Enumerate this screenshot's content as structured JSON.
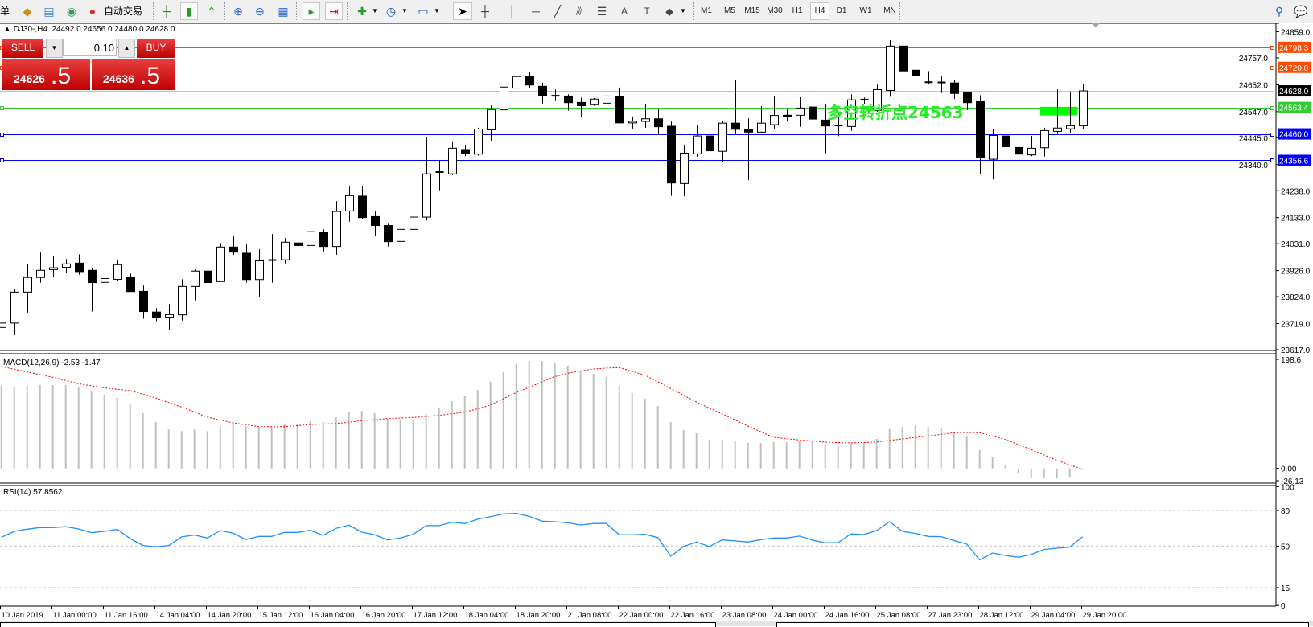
{
  "toolbar": {
    "menu_fragment": "单",
    "auto_trading_label": "自动交易",
    "icons": [
      "market-watch-icon",
      "navigator-icon",
      "terminal-icon",
      "signal-icon",
      "auto-trading-icon",
      "bar-chart-icon",
      "candlestick-icon",
      "line-chart-icon",
      "zoom-in-icon",
      "zoom-out-icon",
      "tile-windows-icon",
      "auto-scroll-icon",
      "chart-shift-icon",
      "indicators-icon",
      "periods-icon",
      "templates-icon",
      "cursor-icon",
      "crosshair-icon",
      "vertical-line-icon",
      "horizontal-line-icon",
      "trendline-icon",
      "fibonacci-icon",
      "fibo-fan-icon",
      "text-icon",
      "text-label-icon",
      "arrows-icon",
      "search-icon",
      "chat-icon"
    ],
    "timeframes": [
      "M1",
      "M5",
      "M15",
      "M30",
      "H1",
      "H4",
      "D1",
      "W1",
      "MN"
    ],
    "active_timeframe": "H4"
  },
  "chart": {
    "header": "DJ30-,H4  24492.0 24656.0 24480.0 24628.0",
    "symbol": "DJ30-,H4",
    "ohlc_text": "24492.0 24656.0 24480.0 24628.0"
  },
  "trade_panel": {
    "sell_label": "SELL",
    "buy_label": "BUY",
    "lot": "0.10",
    "sell_price_main": "24626",
    "sell_price_big": ".5",
    "buy_price_main": "24636",
    "buy_price_big": ".5"
  },
  "annotation": {
    "text": "多空转折点24563",
    "color": "#00ff00"
  },
  "chart_data": {
    "type": "candlestick",
    "price_axis": {
      "ylim": [
        23617.0,
        24859.0
      ],
      "ticks": [
        "24859.0",
        "24757.0",
        "24652.0",
        "24547.0",
        "24445.0",
        "24340.0",
        "24238.0",
        "24133.0",
        "24031.0",
        "23926.0",
        "23824.0",
        "23719.0",
        "23617.0"
      ]
    },
    "time_labels": [
      "10 Jan 2019",
      "11 Jan 00:00",
      "11 Jan 16:00",
      "14 Jan 04:00",
      "14 Jan 20:00",
      "15 Jan 12:00",
      "16 Jan 04:00",
      "16 Jan 20:00",
      "17 Jan 12:00",
      "18 Jan 04:00",
      "18 Jan 20:00",
      "21 Jan 08:00",
      "22 Jan 00:00",
      "22 Jan 16:00",
      "23 Jan 08:00",
      "24 Jan 00:00",
      "24 Jan 16:00",
      "25 Jan 08:00",
      "27 Jan 23:00",
      "28 Jan 12:00",
      "29 Jan 04:00",
      "29 Jan 20:00"
    ],
    "ohlc": [
      [
        23704,
        23752,
        23665,
        23721
      ],
      [
        23721,
        23853,
        23674,
        23842
      ],
      [
        23842,
        23952,
        23762,
        23899
      ],
      [
        23899,
        23996,
        23879,
        23927
      ],
      [
        23930,
        23982,
        23901,
        23937
      ],
      [
        23939,
        23971,
        23918,
        23952
      ],
      [
        23955,
        23989,
        23910,
        23922
      ],
      [
        23927,
        23937,
        23766,
        23879
      ],
      [
        23880,
        23950,
        23819,
        23895
      ],
      [
        23892,
        23969,
        23887,
        23949
      ],
      [
        23899,
        23914,
        23844,
        23844
      ],
      [
        23845,
        23868,
        23738,
        23766
      ],
      [
        23764,
        23779,
        23728,
        23743
      ],
      [
        23744,
        23795,
        23693,
        23754
      ],
      [
        23753,
        23892,
        23731,
        23864
      ],
      [
        23864,
        23930,
        23810,
        23924
      ],
      [
        23924,
        23931,
        23832,
        23879
      ],
      [
        23883,
        24034,
        23883,
        24018
      ],
      [
        24018,
        24060,
        23987,
        23998
      ],
      [
        23994,
        24031,
        23879,
        23891
      ],
      [
        23891,
        24010,
        23822,
        23964
      ],
      [
        23965,
        24069,
        23879,
        23967
      ],
      [
        23968,
        24053,
        23954,
        24037
      ],
      [
        24034,
        24050,
        23954,
        24024
      ],
      [
        24024,
        24093,
        23999,
        24078
      ],
      [
        24075,
        24087,
        24001,
        24020
      ],
      [
        24020,
        24197,
        23988,
        24157
      ],
      [
        24159,
        24254,
        24117,
        24219
      ],
      [
        24217,
        24257,
        24129,
        24133
      ],
      [
        24137,
        24159,
        24061,
        24102
      ],
      [
        24102,
        24109,
        24020,
        24039
      ],
      [
        24040,
        24107,
        24008,
        24087
      ],
      [
        24087,
        24166,
        24033,
        24135
      ],
      [
        24135,
        24446,
        24122,
        24304
      ],
      [
        24309,
        24358,
        24240,
        24311
      ],
      [
        24304,
        24428,
        24299,
        24404
      ],
      [
        24399,
        24418,
        24373,
        24384
      ],
      [
        24381,
        24484,
        24375,
        24479
      ],
      [
        24476,
        24571,
        24432,
        24555
      ],
      [
        24554,
        24724,
        24548,
        24643
      ],
      [
        24639,
        24703,
        24617,
        24684
      ],
      [
        24684,
        24700,
        24639,
        24651
      ],
      [
        24646,
        24660,
        24579,
        24610
      ],
      [
        24609,
        24634,
        24588,
        24609
      ],
      [
        24608,
        24615,
        24551,
        24582
      ],
      [
        24583,
        24602,
        24526,
        24570
      ],
      [
        24574,
        24600,
        24570,
        24596
      ],
      [
        24580,
        24619,
        24574,
        24608
      ],
      [
        24605,
        24641,
        24501,
        24503
      ],
      [
        24503,
        24528,
        24481,
        24509
      ],
      [
        24509,
        24575,
        24484,
        24519
      ],
      [
        24519,
        24558,
        24456,
        24488
      ],
      [
        24490,
        24508,
        24218,
        24268
      ],
      [
        24266,
        24418,
        24216,
        24385
      ],
      [
        24382,
        24494,
        24371,
        24452
      ],
      [
        24452,
        24455,
        24387,
        24394
      ],
      [
        24392,
        24512,
        24350,
        24502
      ],
      [
        24502,
        24669,
        24459,
        24478
      ],
      [
        24479,
        24521,
        24279,
        24467
      ],
      [
        24467,
        24568,
        24464,
        24502
      ],
      [
        24496,
        24606,
        24481,
        24532
      ],
      [
        24533,
        24556,
        24508,
        24527
      ],
      [
        24533,
        24603,
        24488,
        24561
      ],
      [
        24565,
        24600,
        24422,
        24518
      ],
      [
        24514,
        24575,
        24384,
        24491
      ],
      [
        24491,
        24539,
        24451,
        24493
      ],
      [
        24489,
        24615,
        24472,
        24593
      ],
      [
        24592,
        24602,
        24578,
        24594
      ],
      [
        24552,
        24652,
        24546,
        24633
      ],
      [
        24630,
        24826,
        24605,
        24803
      ],
      [
        24803,
        24813,
        24640,
        24706
      ],
      [
        24709,
        24715,
        24640,
        24689
      ],
      [
        24662,
        24705,
        24653,
        24660
      ],
      [
        24659,
        24684,
        24620,
        24661
      ],
      [
        24659,
        24672,
        24596,
        24618
      ],
      [
        24621,
        24625,
        24553,
        24582
      ],
      [
        24586,
        24611,
        24303,
        24368
      ],
      [
        24361,
        24479,
        24282,
        24454
      ],
      [
        24452,
        24489,
        24406,
        24410
      ],
      [
        24407,
        24417,
        24347,
        24381
      ],
      [
        24378,
        24452,
        24373,
        24404
      ],
      [
        24406,
        24484,
        24372,
        24473
      ],
      [
        24470,
        24634,
        24460,
        24483
      ],
      [
        24480,
        24622,
        24462,
        24492
      ],
      [
        24492,
        24656,
        24480,
        24628
      ]
    ],
    "bull_color": "#ffffff",
    "bear_color": "#000000",
    "horizontal_lines": [
      {
        "price": 24798.3,
        "label": "24798.3",
        "color": "#ff4a00"
      },
      {
        "price": 24720.0,
        "label": "24720.0",
        "color": "#ff4a00"
      },
      {
        "price": 24628.0,
        "label": "24628.0",
        "color": "#c0c0c0",
        "label_bg": "#000000",
        "kind": "bid"
      },
      {
        "price": 24563.4,
        "label": "24563.4",
        "color": "#32cd32"
      },
      {
        "price": 24460.0,
        "label": "24460.0",
        "color": "#0000ff"
      },
      {
        "price": 24356.6,
        "label": "24356.6",
        "color": "#0000ff"
      }
    ],
    "rectangle": {
      "price_top": 24566,
      "price_bottom": 24532,
      "from_index": 80.7,
      "to_index": 83.6,
      "color": "#00ff00"
    },
    "macd": {
      "label": "MACD(12,26,9) -2.53 -1.47",
      "params": [
        12,
        26,
        9
      ],
      "value": -2.53,
      "signal_value": -1.47,
      "ylim": [
        -26.13,
        198.6
      ],
      "axis_labels": [
        "198.6",
        "0.00",
        "-26.13"
      ],
      "histogram_color": "#c0c0c0",
      "signal_color": "#ff0000",
      "histogram": [
        146.5,
        145,
        146.5,
        148,
        148,
        148,
        145,
        136.5,
        129.4,
        126.5,
        115,
        98,
        82.3,
        69,
        66.2,
        69,
        66.2,
        75.2,
        80,
        75.2,
        73.8,
        73.8,
        78,
        79.5,
        83.7,
        82.3,
        90.9,
        100.9,
        102.3,
        98,
        88,
        85.2,
        85.2,
        96.6,
        106.6,
        119.4,
        128,
        139.4,
        154,
        170.7,
        185,
        190.7,
        190.7,
        187.8,
        182.2,
        174,
        167.9,
        162.2,
        146.5,
        133.7,
        123.6,
        110.8,
        82.3,
        68,
        62.3,
        50.9,
        50.9,
        49.5,
        45.2,
        45.2,
        46.6,
        46.6,
        48.1,
        48.1,
        42.4,
        39.5,
        43.8,
        46.6,
        52.4,
        69.5,
        73.8,
        76.6,
        73.8,
        70.9,
        65.2,
        56.6,
        32.4,
        19.5,
        5.3,
        -9,
        -17.6,
        -17.6,
        -17.6,
        -16.2,
        -2.53
      ],
      "signal": [
        180.7,
        176,
        171,
        166.4,
        161.8,
        156,
        150.4,
        146.7,
        143,
        140.5,
        138,
        131.5,
        125,
        117,
        109,
        100,
        90.9,
        85.9,
        80.9,
        77.5,
        74.2,
        74.2,
        74.2,
        76,
        78,
        78.8,
        79.5,
        82,
        84.7,
        86.5,
        88.4,
        89.4,
        90.4,
        92.3,
        94.2,
        97,
        99.9,
        106,
        112.3,
        123.5,
        134.7,
        144,
        153.6,
        163,
        168.9,
        173,
        176.5,
        178,
        178.9,
        172,
        165.5,
        153.6,
        141.8,
        130,
        118,
        107,
        96.6,
        86,
        75.2,
        65,
        55.2,
        52.8,
        50.5,
        48.5,
        46.6,
        45.9,
        45.2,
        46,
        47,
        49.7,
        52.4,
        55,
        57.6,
        60.5,
        63.3,
        63.8,
        63.3,
        57.5,
        51.4,
        42.5,
        33.4,
        24,
        14.3,
        6.5,
        -1.47
      ]
    },
    "rsi": {
      "label": "RSI(14) 57.8562",
      "period": 14,
      "value": 57.8562,
      "ylim": [
        0,
        100
      ],
      "axis_labels": [
        "100",
        "80",
        "50",
        "15",
        "0"
      ],
      "levels": [
        80,
        50,
        15
      ],
      "color": "#1e90ff",
      "values": [
        57.4,
        62.4,
        64.2,
        65.6,
        65.6,
        66.3,
        64.4,
        61.3,
        62.4,
        64,
        56.3,
        50.5,
        49.3,
        50.5,
        57.7,
        59.3,
        56.8,
        63.1,
        60.8,
        55.4,
        58.1,
        58.1,
        61.5,
        61.5,
        63.3,
        59,
        64.9,
        67.6,
        61.7,
        59.5,
        55.2,
        56.8,
        59.9,
        67.2,
        67.2,
        70.1,
        69,
        72.6,
        74.8,
        77.1,
        77.5,
        75.1,
        71,
        70.5,
        69.6,
        67.8,
        69,
        69,
        59.5,
        59.5,
        59.9,
        57.2,
        41.4,
        49.5,
        53.4,
        49.5,
        55.2,
        54.3,
        53.4,
        55.4,
        56.8,
        56.8,
        58.4,
        55,
        52.7,
        52.9,
        60.2,
        59.7,
        63.1,
        70.5,
        62.4,
        60.6,
        58.1,
        57.9,
        54.7,
        51.6,
        38.3,
        44.1,
        42.1,
        40.5,
        42.8,
        47.1,
        48.2,
        49.1,
        57.86
      ]
    }
  }
}
